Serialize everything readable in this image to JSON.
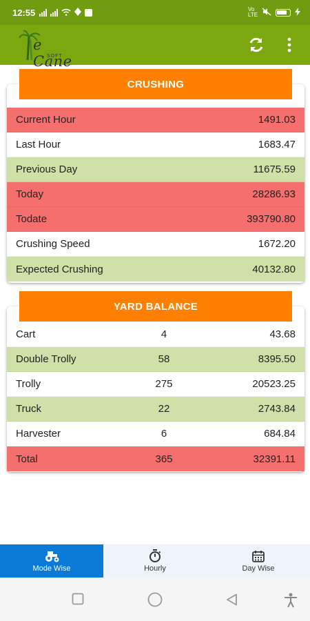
{
  "status_bar": {
    "time": "12:55",
    "network": "Vo LTE"
  },
  "app_bar": {
    "logo_text": "e Cane",
    "logo_sub": "SOFT",
    "icons": [
      "refresh-icon",
      "more-vert-icon"
    ]
  },
  "crushing": {
    "title": "CRUSHING",
    "rows": [
      {
        "label": "Current Hour",
        "value": "1491.03",
        "color": "#f66f6f"
      },
      {
        "label": "Last Hour",
        "value": "1683.47",
        "color": "#ffffff"
      },
      {
        "label": "Previous Day",
        "value": "11675.59",
        "color": "#cfe0a8"
      },
      {
        "label": "Today",
        "value": "28286.93",
        "color": "#f66f6f"
      },
      {
        "label": "Todate",
        "value": "393790.80",
        "color": "#f66f6f"
      },
      {
        "label": "Crushing Speed",
        "value": "1672.20",
        "color": "#ffffff"
      },
      {
        "label": "Expected Crushing",
        "value": "40132.80",
        "color": "#cfe0a8"
      }
    ]
  },
  "yard_balance": {
    "title": "YARD BALANCE",
    "rows": [
      {
        "label": "Cart",
        "count": "4",
        "value": "43.68",
        "color": "#ffffff"
      },
      {
        "label": "Double Trolly",
        "count": "58",
        "value": "8395.50",
        "color": "#cfe0a8"
      },
      {
        "label": "Trolly",
        "count": "275",
        "value": "20523.25",
        "color": "#ffffff"
      },
      {
        "label": "Truck",
        "count": "22",
        "value": "2743.84",
        "color": "#cfe0a8"
      },
      {
        "label": "Harvester",
        "count": "6",
        "value": "684.84",
        "color": "#ffffff"
      },
      {
        "label": "Total",
        "count": "365",
        "value": "32391.11",
        "color": "#f66f6f"
      }
    ]
  },
  "bottom_nav": {
    "items": [
      {
        "label": "Mode Wise",
        "icon": "tractor-icon",
        "active": true
      },
      {
        "label": "Hourly",
        "icon": "timer-icon",
        "active": false
      },
      {
        "label": "Day Wise",
        "icon": "calendar-icon",
        "active": false
      }
    ]
  },
  "colors": {
    "brand_green": "#7ba80f",
    "header_orange": "#ff7f00",
    "row_red": "#f66f6f",
    "row_green": "#cfe0a8",
    "nav_active": "#0a7ad6"
  }
}
